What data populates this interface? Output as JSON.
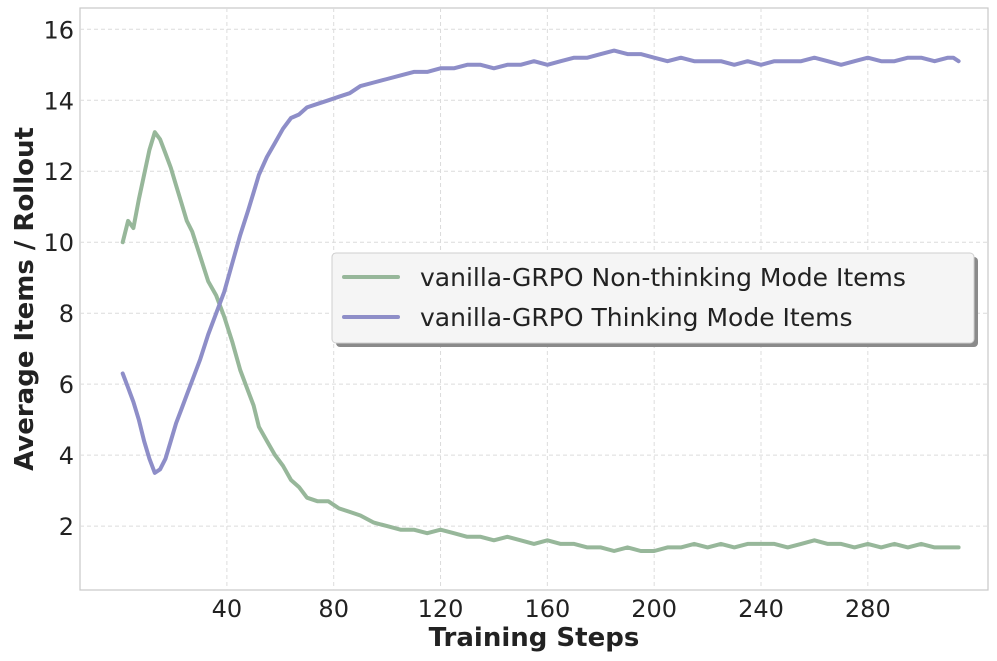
{
  "chart_data": {
    "type": "line",
    "xlabel": "Training Steps",
    "ylabel": "Average Items / Rollout",
    "xlim": [
      -15,
      325
    ],
    "ylim": [
      0.2,
      16.6
    ],
    "xticks": [
      40,
      80,
      120,
      160,
      200,
      240,
      280
    ],
    "yticks": [
      2,
      4,
      6,
      8,
      10,
      12,
      14,
      16
    ],
    "grid": true,
    "legend_position": "center-right",
    "series": [
      {
        "name": "vanilla-GRPO Non-thinking Mode Items",
        "color": "#97b79a",
        "x": [
          1,
          3,
          5,
          7,
          9,
          11,
          13,
          15,
          17,
          19,
          21,
          23,
          25,
          27,
          30,
          33,
          36,
          39,
          42,
          45,
          48,
          50,
          52,
          55,
          58,
          61,
          64,
          67,
          70,
          74,
          78,
          82,
          86,
          90,
          95,
          100,
          105,
          110,
          115,
          120,
          125,
          130,
          135,
          140,
          145,
          150,
          155,
          160,
          165,
          170,
          175,
          180,
          185,
          190,
          195,
          200,
          205,
          210,
          215,
          220,
          225,
          230,
          235,
          240,
          245,
          250,
          255,
          260,
          265,
          270,
          275,
          280,
          285,
          290,
          295,
          300,
          305,
          310,
          312,
          314
        ],
        "y": [
          10.0,
          10.6,
          10.4,
          11.2,
          11.9,
          12.6,
          13.1,
          12.9,
          12.5,
          12.1,
          11.6,
          11.1,
          10.6,
          10.3,
          9.6,
          8.9,
          8.5,
          7.9,
          7.2,
          6.4,
          5.8,
          5.4,
          4.8,
          4.4,
          4.0,
          3.7,
          3.3,
          3.1,
          2.8,
          2.7,
          2.7,
          2.5,
          2.4,
          2.3,
          2.1,
          2.0,
          1.9,
          1.9,
          1.8,
          1.9,
          1.8,
          1.7,
          1.7,
          1.6,
          1.7,
          1.6,
          1.5,
          1.6,
          1.5,
          1.5,
          1.4,
          1.4,
          1.3,
          1.4,
          1.3,
          1.3,
          1.4,
          1.4,
          1.5,
          1.4,
          1.5,
          1.4,
          1.5,
          1.5,
          1.5,
          1.4,
          1.5,
          1.6,
          1.5,
          1.5,
          1.4,
          1.5,
          1.4,
          1.5,
          1.4,
          1.5,
          1.4,
          1.4,
          1.4,
          1.4
        ]
      },
      {
        "name": "vanilla-GRPO Thinking Mode Items",
        "color": "#8e8ec8",
        "x": [
          1,
          3,
          5,
          7,
          9,
          11,
          13,
          15,
          17,
          19,
          21,
          23,
          25,
          27,
          30,
          33,
          36,
          39,
          42,
          45,
          48,
          50,
          52,
          55,
          58,
          61,
          64,
          67,
          70,
          74,
          78,
          82,
          86,
          90,
          95,
          100,
          105,
          110,
          115,
          120,
          125,
          130,
          135,
          140,
          145,
          150,
          155,
          160,
          165,
          170,
          175,
          180,
          185,
          190,
          195,
          200,
          205,
          210,
          215,
          220,
          225,
          230,
          235,
          240,
          245,
          250,
          255,
          260,
          265,
          270,
          275,
          280,
          285,
          290,
          295,
          300,
          305,
          310,
          312,
          314
        ],
        "y": [
          6.3,
          5.9,
          5.5,
          5.0,
          4.4,
          3.9,
          3.5,
          3.6,
          3.9,
          4.4,
          4.9,
          5.3,
          5.7,
          6.1,
          6.7,
          7.4,
          8.0,
          8.6,
          9.4,
          10.2,
          10.9,
          11.4,
          11.9,
          12.4,
          12.8,
          13.2,
          13.5,
          13.6,
          13.8,
          13.9,
          14.0,
          14.1,
          14.2,
          14.4,
          14.5,
          14.6,
          14.7,
          14.8,
          14.8,
          14.9,
          14.9,
          15.0,
          15.0,
          14.9,
          15.0,
          15.0,
          15.1,
          15.0,
          15.1,
          15.2,
          15.2,
          15.3,
          15.4,
          15.3,
          15.3,
          15.2,
          15.1,
          15.2,
          15.1,
          15.1,
          15.1,
          15.0,
          15.1,
          15.0,
          15.1,
          15.1,
          15.1,
          15.2,
          15.1,
          15.0,
          15.1,
          15.2,
          15.1,
          15.1,
          15.2,
          15.2,
          15.1,
          15.2,
          15.2,
          15.1
        ]
      }
    ]
  }
}
